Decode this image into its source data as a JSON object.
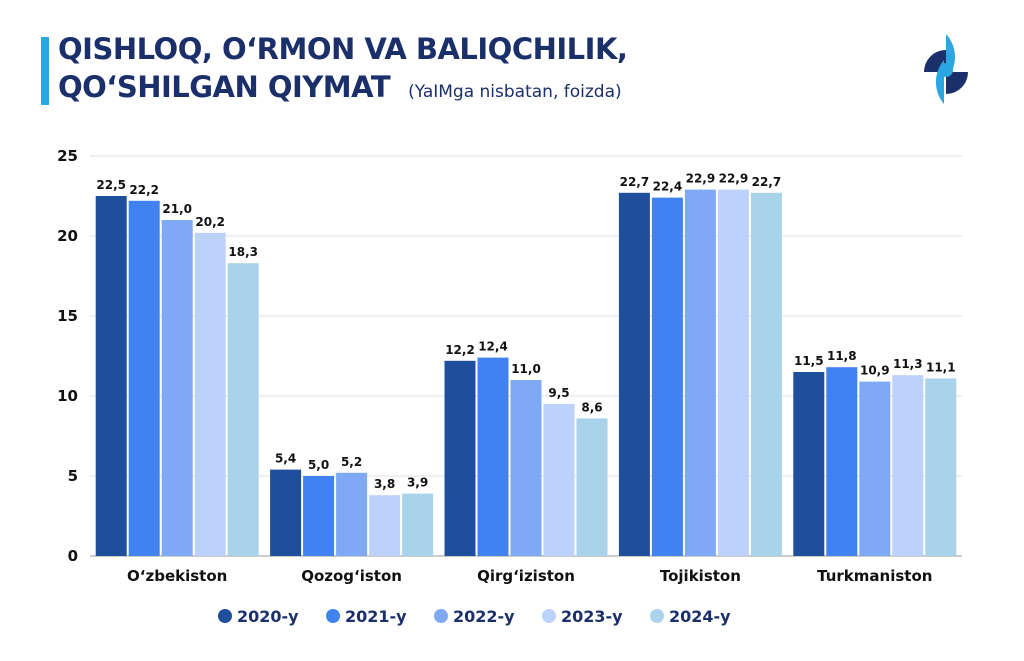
{
  "header": {
    "title_line1": "QISHLOQ, O‘RMON VA BALIQCHILIK,",
    "title_line2": "QO‘SHILGAN QIYMAT",
    "subtitle": "(YaIMga nisbatan, foizda)",
    "logo": "eye-shaped circular logo"
  },
  "chart_data": {
    "type": "bar",
    "title": "QISHLOQ, O‘RMON VA BALIQCHILIK, QO‘SHILGAN QIYMAT",
    "subtitle": "(YaIMga nisbatan, foizda)",
    "categories": [
      "O‘zbekiston",
      "Qozog‘iston",
      "Qirg‘iziston",
      "Tojikiston",
      "Turkmaniston"
    ],
    "series": [
      {
        "name": "2020-y",
        "color": "#1f4e9c",
        "values": [
          22.5,
          5.4,
          12.2,
          22.7,
          11.5
        ],
        "labels": [
          "22,5",
          "5,4",
          "12,2",
          "22,7",
          "11,5"
        ]
      },
      {
        "name": "2021-y",
        "color": "#3f82f0",
        "values": [
          22.2,
          5.0,
          12.4,
          22.4,
          11.8
        ],
        "labels": [
          "22,2",
          "5,0",
          "12,4",
          "22,4",
          "11,8"
        ]
      },
      {
        "name": "2022-y",
        "color": "#7fa9f5",
        "values": [
          21.0,
          5.2,
          11.0,
          22.9,
          10.9
        ],
        "labels": [
          "21,0",
          "5,2",
          "11,0",
          "22,9",
          "10,9"
        ]
      },
      {
        "name": "2023-y",
        "color": "#bcd2fb",
        "values": [
          20.2,
          3.8,
          9.5,
          22.9,
          11.3
        ],
        "labels": [
          "20,2",
          "3,8",
          "9,5",
          "22,9",
          "11,3"
        ]
      },
      {
        "name": "2024-y",
        "color": "#a9d3ea",
        "values": [
          18.3,
          3.9,
          8.6,
          22.7,
          11.1
        ],
        "labels": [
          "18,3",
          "3,9",
          "8,6",
          "22,7",
          "11,1"
        ]
      }
    ],
    "ylim": [
      0,
      25
    ],
    "yticks": [
      "0",
      "5",
      "10",
      "15",
      "20",
      "25"
    ],
    "grid": true,
    "legend": "bottom"
  }
}
